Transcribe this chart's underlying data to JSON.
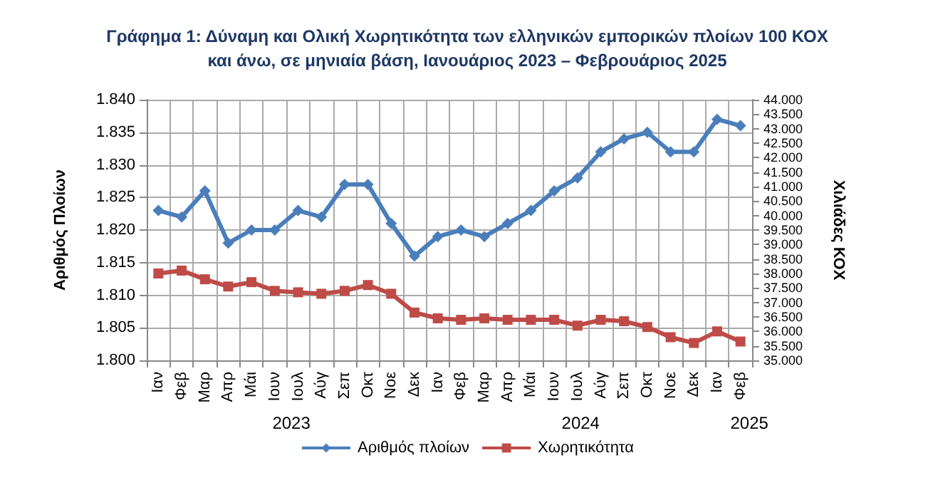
{
  "chart_data": {
    "type": "line",
    "title": "Γράφημα 1: Δύναμη και Ολική Χωρητικότητα των ελληνικών εμπορικών πλοίων 100 ΚΟΧ\nκαι άνω, σε μηνιαία βάση, Ιανουάριος 2023 – Φεβρουάριος 2025",
    "ylabel": "Αριθμός Πλοίων",
    "y2label": "Χιλιάδες ΚΟΧ",
    "categories": [
      "Ιαν",
      "Φεβ",
      "Μαρ",
      "Απρ",
      "Μάι",
      "Ιουν",
      "Ιουλ",
      "Αύγ",
      "Σεπ",
      "Οκτ",
      "Νοε",
      "Δεκ",
      "Ιαν",
      "Φεβ",
      "Μαρ",
      "Απρ",
      "Μάι",
      "Ιουν",
      "Ιουλ",
      "Αύγ",
      "Σεπ",
      "Οκτ",
      "Νοε",
      "Δεκ",
      "Ιαν",
      "Φεβ"
    ],
    "annotations": [
      "2023",
      "2024",
      "2025"
    ],
    "series": [
      {
        "name": "Αριθμός πλοίων",
        "color": "#4a7ebb",
        "marker": "diamond",
        "values": [
          1823,
          1822,
          1826,
          1818,
          1820,
          1820,
          1823,
          1822,
          1827,
          1827,
          1821,
          1816,
          1819,
          1820,
          1819,
          1821,
          1823,
          1826,
          1828,
          1832,
          1834,
          1835,
          1832,
          1832,
          1837,
          1836
        ]
      },
      {
        "name": "Χωρητικότητα",
        "color": "#be4b48",
        "marker": "square",
        "axis": "y2",
        "values": [
          38000,
          38100,
          37800,
          37550,
          37700,
          37400,
          37350,
          37300,
          37400,
          37600,
          37300,
          36650,
          36450,
          36400,
          36450,
          36400,
          36400,
          36400,
          36200,
          36400,
          36350,
          36150,
          35800,
          35600,
          36000,
          35650
        ]
      }
    ],
    "ylim": [
      1800,
      1840
    ],
    "yticks": [
      {
        "value": 1800,
        "label": "1.800"
      },
      {
        "value": 1805,
        "label": "1.805"
      },
      {
        "value": 1810,
        "label": "1.810"
      },
      {
        "value": 1815,
        "label": "1.815"
      },
      {
        "value": 1820,
        "label": "1.820"
      },
      {
        "value": 1825,
        "label": "1.825"
      },
      {
        "value": 1830,
        "label": "1.830"
      },
      {
        "value": 1835,
        "label": "1.835"
      },
      {
        "value": 1840,
        "label": "1.840"
      }
    ],
    "y2lim": [
      35000,
      44000
    ],
    "y2ticks": [
      {
        "value": 35000,
        "label": "35.000"
      },
      {
        "value": 35500,
        "label": "35.500"
      },
      {
        "value": 36000,
        "label": "36.000"
      },
      {
        "value": 36500,
        "label": "36.500"
      },
      {
        "value": 37000,
        "label": "37.000"
      },
      {
        "value": 37500,
        "label": "37.500"
      },
      {
        "value": 38000,
        "label": "38.000"
      },
      {
        "value": 38500,
        "label": "38.500"
      },
      {
        "value": 39000,
        "label": "39.000"
      },
      {
        "value": 39500,
        "label": "39.500"
      },
      {
        "value": 40000,
        "label": "40.000"
      },
      {
        "value": 40500,
        "label": "40.500"
      },
      {
        "value": 41000,
        "label": "41.000"
      },
      {
        "value": 41500,
        "label": "41.500"
      },
      {
        "value": 42000,
        "label": "42.000"
      },
      {
        "value": 42500,
        "label": "42.500"
      },
      {
        "value": 43000,
        "label": "43.000"
      },
      {
        "value": 43500,
        "label": "43.500"
      },
      {
        "value": 44000,
        "label": "44.000"
      }
    ],
    "grid": true,
    "legend": "bottom",
    "line_style": "solid"
  }
}
